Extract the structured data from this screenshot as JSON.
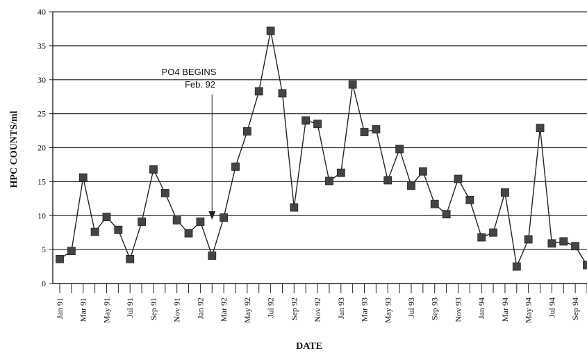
{
  "chart_data": {
    "type": "line",
    "ylabel": "HPC COUNTS/ml",
    "xlabel": "DATE",
    "ylim": [
      0,
      40
    ],
    "yticks": [
      0,
      5,
      10,
      15,
      20,
      25,
      30,
      35,
      40
    ],
    "grid": true,
    "x_tick_labels": [
      "Jan 91",
      "Mar 91",
      "May 91",
      "Jul 91",
      "Sep 91",
      "Nov 91",
      "Jan 92",
      "Mar 92",
      "May 92",
      "Jul 92",
      "Sep 92",
      "Nov 92",
      "Jan 93",
      "Mar 93",
      "May 93",
      "Jul 93",
      "Sep 93",
      "Nov 93",
      "Jan 94",
      "Mar 94",
      "May 94",
      "Jul 94",
      "Sep 94"
    ],
    "x": [
      "Jan 91",
      "Feb 91",
      "Mar 91",
      "Apr 91",
      "May 91",
      "Jun 91",
      "Jul 91",
      "Aug 91",
      "Sep 91",
      "Oct 91",
      "Nov 91",
      "Dec 91",
      "Jan 92",
      "Feb 92",
      "Mar 92",
      "Apr 92",
      "May 92",
      "Jun 92",
      "Jul 92",
      "Aug 92",
      "Sep 92",
      "Oct 92",
      "Nov 92",
      "Dec 92",
      "Jan 93",
      "Feb 93",
      "Mar 93",
      "Apr 93",
      "May 93",
      "Jun 93",
      "Jul 93",
      "Aug 93",
      "Sep 93",
      "Oct 93",
      "Nov 93",
      "Dec 93",
      "Jan 94",
      "Feb 94",
      "Mar 94",
      "Apr 94",
      "May 94",
      "Jun 94",
      "Jul 94",
      "Aug 94",
      "Sep 94",
      "Oct 94"
    ],
    "series": [
      {
        "values": [
          3.6,
          4.8,
          15.6,
          7.6,
          9.8,
          7.9,
          3.6,
          9.1,
          16.8,
          13.3,
          9.3,
          7.4,
          9.1,
          4.1,
          9.7,
          17.2,
          22.4,
          28.3,
          37.2,
          28.0,
          11.2,
          24.0,
          23.5,
          15.1,
          16.3,
          29.3,
          22.3,
          22.7,
          15.2,
          19.8,
          14.4,
          16.5,
          11.7,
          10.2,
          15.4,
          12.3,
          6.8,
          7.5,
          13.4,
          2.5,
          6.5,
          22.9,
          5.9,
          6.2,
          5.5,
          2.7
        ]
      }
    ],
    "annotations": [
      {
        "line1": "PO4 BEGINS",
        "line2": "Feb. 92",
        "points_to": "Feb 92"
      }
    ]
  }
}
